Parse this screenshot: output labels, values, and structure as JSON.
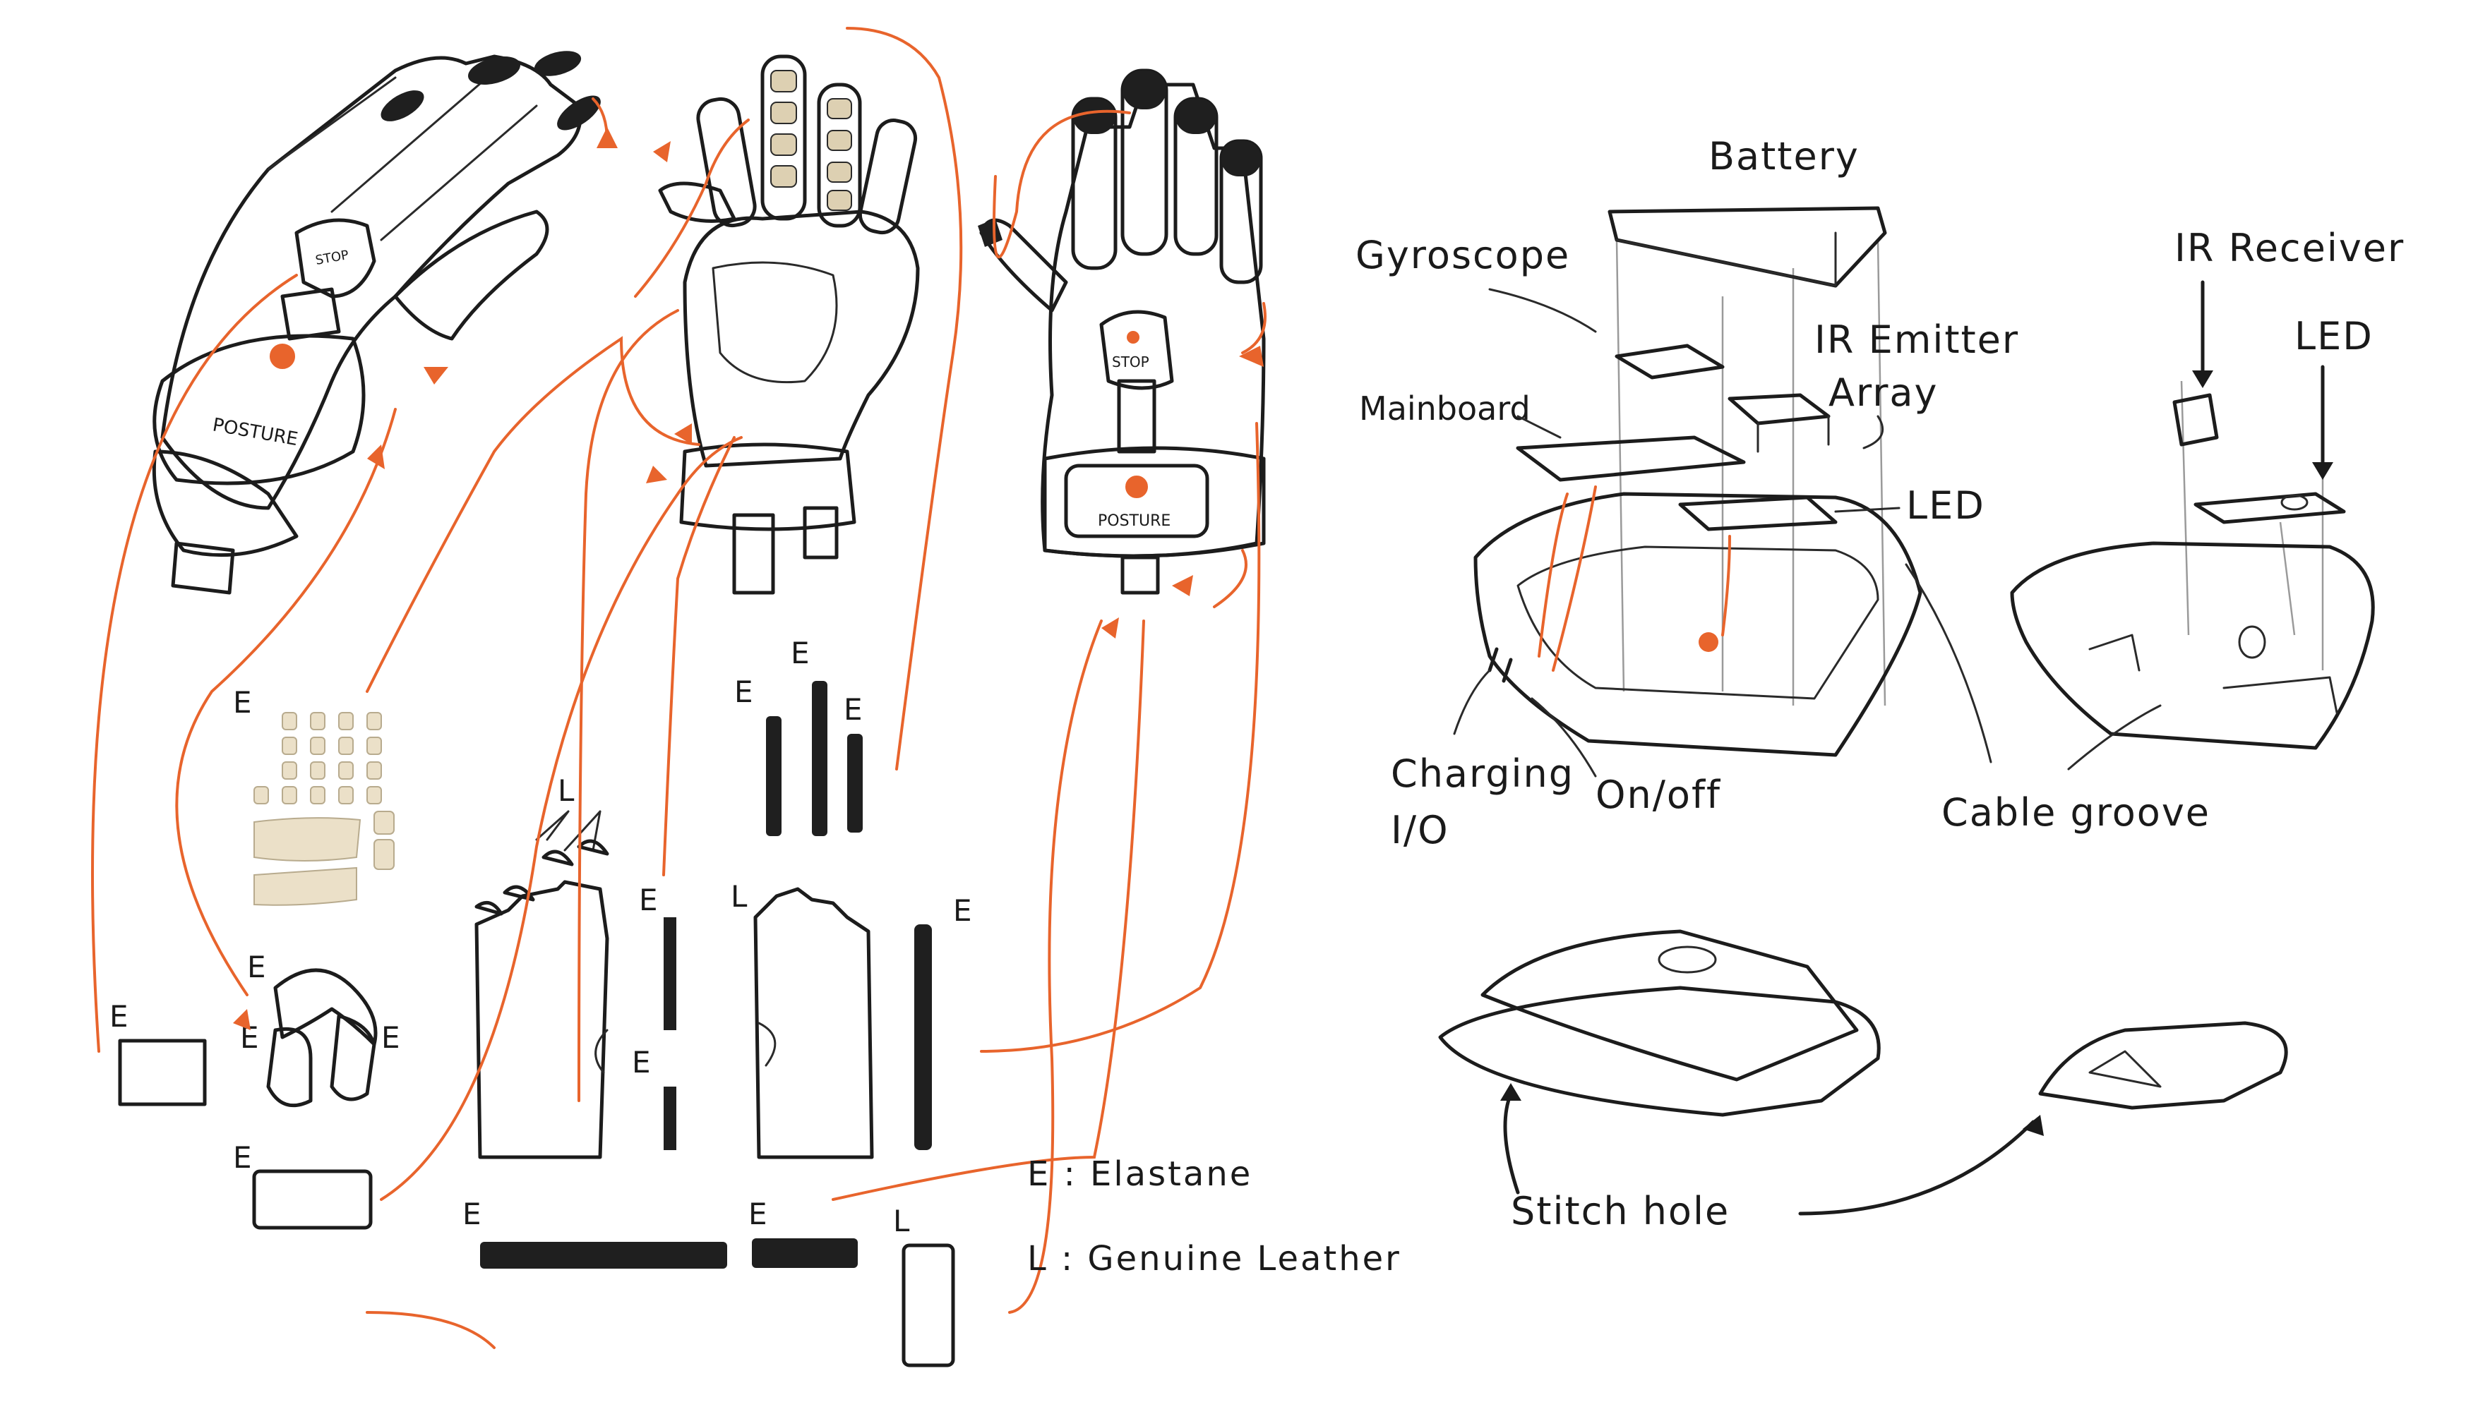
{
  "colors": {
    "yellow": "#f2b521",
    "beige": "#ebe0c8",
    "black": "#1f1f1f",
    "orange": "#e8642c",
    "ink": "#1c1c1c"
  },
  "gloves": {
    "back_stop_label": "STOP",
    "back_brand_label": "POSTURE",
    "front_stop_label": "STOP",
    "front_brand_label": "POSTURE"
  },
  "parts": {
    "e_letter": "E",
    "l_letter": "L"
  },
  "legend": {
    "elastane": "E : Elastane",
    "leather": "L : Genuine Leather"
  },
  "module_labels": {
    "battery": "Battery",
    "gyroscope": "Gyroscope",
    "ir_emitter_line1": "IR Emitter",
    "ir_emitter_line2": "Array",
    "mainboard": "Mainboard",
    "led_main": "LED",
    "charging_line1": "Charging",
    "charging_line2": "I/O",
    "onoff": "On/off",
    "ir_receiver": "IR Receiver",
    "led_small": "LED",
    "cable_groove": "Cable groove",
    "stitch_hole": "Stitch hole"
  }
}
